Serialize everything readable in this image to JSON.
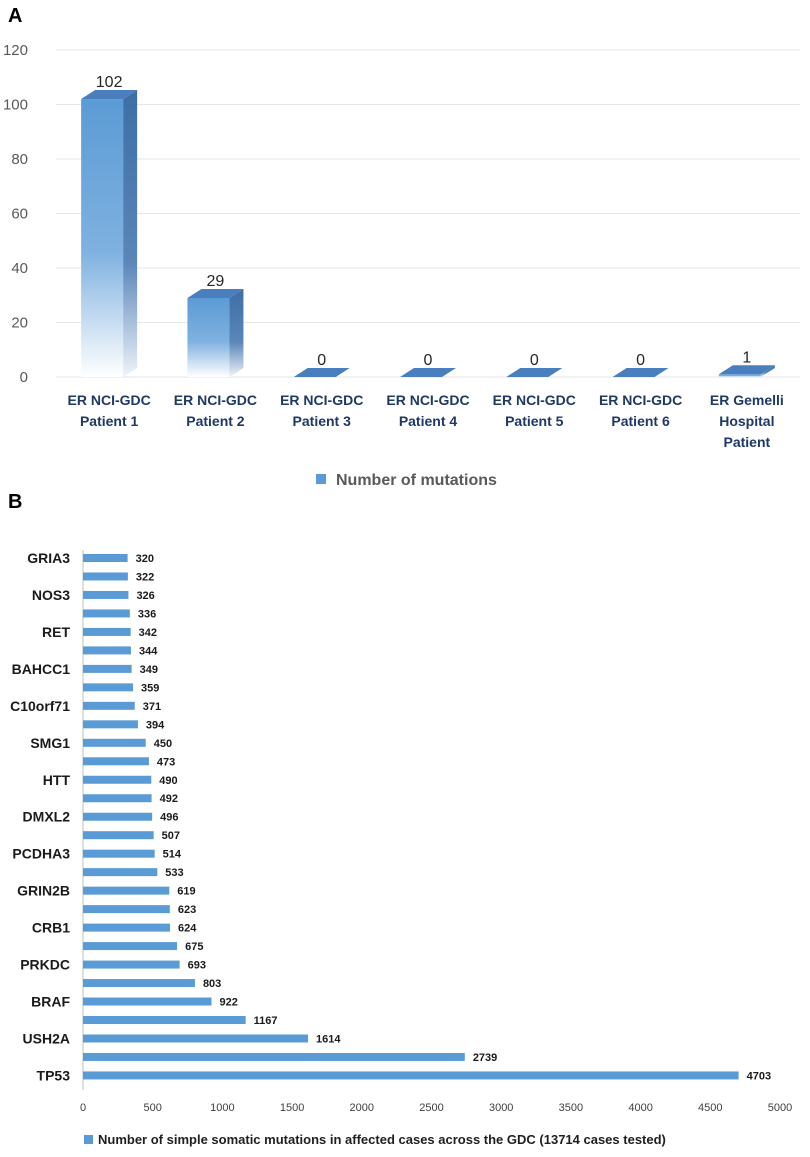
{
  "chart_data": [
    {
      "panel": "A",
      "type": "bar",
      "style": "3d",
      "categories": [
        [
          "ER NCI-GDC",
          "Patient 1"
        ],
        [
          "ER NCI-GDC",
          "Patient 2"
        ],
        [
          "ER NCI-GDC",
          "Patient 3"
        ],
        [
          "ER NCI-GDC",
          "Patient 4"
        ],
        [
          "ER NCI-GDC",
          "Patient 5"
        ],
        [
          "ER NCI-GDC",
          "Patient 6"
        ],
        [
          "ER Gemelli",
          "Hospital",
          "Patient"
        ]
      ],
      "series": [
        {
          "name": "Number of mutations",
          "values": [
            102,
            29,
            0,
            0,
            0,
            0,
            1
          ]
        }
      ],
      "ylim": [
        0,
        120
      ],
      "yticks": [
        0,
        20,
        40,
        60,
        80,
        100,
        120
      ],
      "grid": true,
      "legend_position": "bottom",
      "colors": {
        "bar_front": "#5b9bd5",
        "bar_side": "#3d6ea5",
        "bar_top": "#4a7fbf",
        "grid": "#e6e6e6"
      }
    },
    {
      "panel": "B",
      "type": "bar",
      "orientation": "horizontal",
      "categories": [
        "GRIA3",
        "",
        "NOS3",
        "",
        "RET",
        "",
        "BAHCC1",
        "",
        "C10orf71",
        "",
        "SMG1",
        "",
        "HTT",
        "",
        "DMXL2",
        "",
        "PCDHA3",
        "",
        "GRIN2B",
        "",
        "CRB1",
        "",
        "PRKDC",
        "",
        "BRAF",
        "",
        "USH2A",
        "",
        "TP53"
      ],
      "series": [
        {
          "name": "Number of simple somatic mutations in affected cases across the GDC (13714 cases tested)",
          "values": [
            320,
            322,
            326,
            336,
            342,
            344,
            349,
            359,
            371,
            394,
            450,
            473,
            490,
            492,
            496,
            507,
            514,
            533,
            619,
            623,
            624,
            675,
            693,
            803,
            922,
            1167,
            1614,
            2739,
            4703
          ]
        }
      ],
      "xlim": [
        0,
        5000
      ],
      "xticks": [
        0,
        500,
        1000,
        1500,
        2000,
        2500,
        3000,
        3500,
        4000,
        4500,
        5000
      ],
      "grid": false,
      "legend_position": "bottom",
      "colors": {
        "bar": "#5b9bd5",
        "axis": "#bfbfbf"
      }
    }
  ],
  "panel_labels": {
    "a": "A",
    "b": "B"
  }
}
